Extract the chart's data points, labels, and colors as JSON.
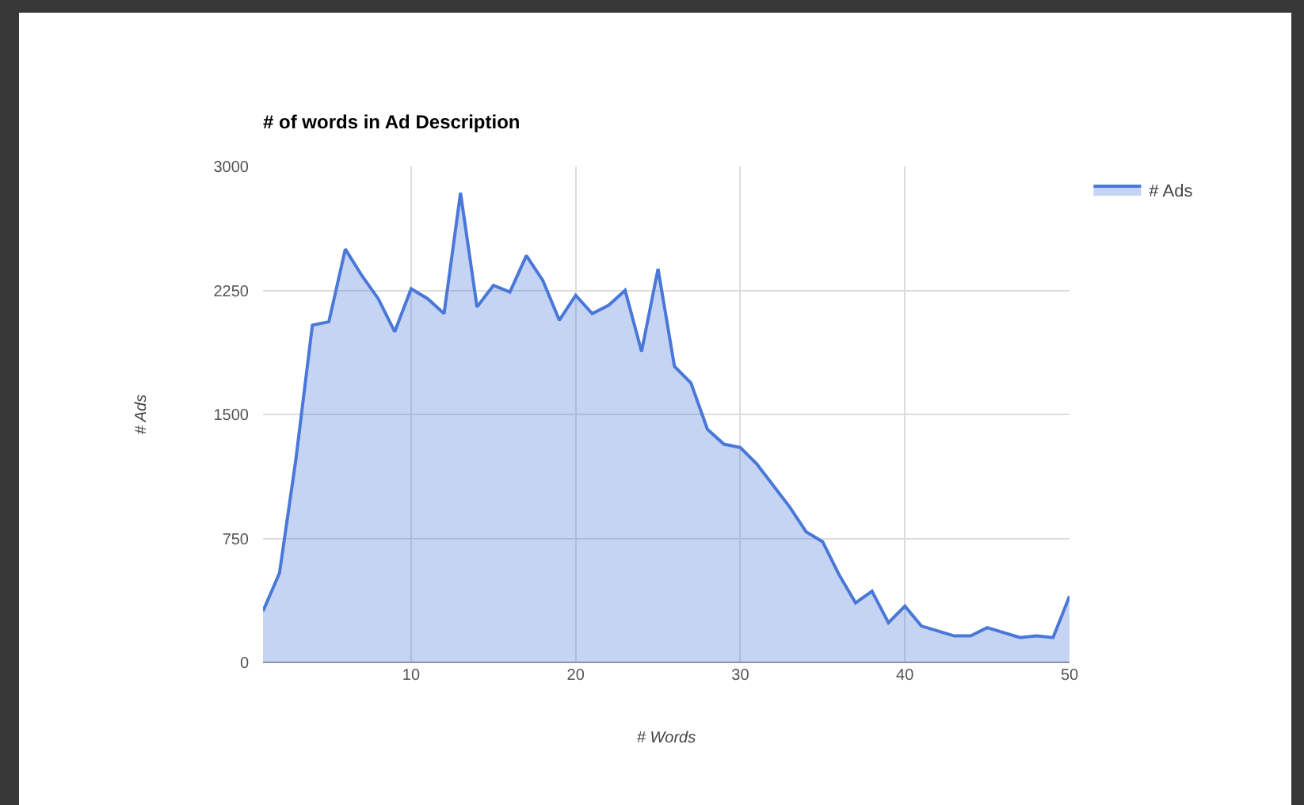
{
  "chart_data": {
    "type": "area",
    "title": "# of words in Ad Description",
    "xlabel": "# Words",
    "ylabel": "# Ads",
    "x": [
      1,
      2,
      3,
      4,
      5,
      6,
      7,
      8,
      9,
      10,
      11,
      12,
      13,
      14,
      15,
      16,
      17,
      18,
      19,
      20,
      21,
      22,
      23,
      24,
      25,
      26,
      27,
      28,
      29,
      30,
      31,
      32,
      33,
      34,
      35,
      36,
      37,
      38,
      39,
      40,
      41,
      42,
      43,
      44,
      45,
      46,
      47,
      48,
      49,
      50
    ],
    "series": [
      {
        "name": "# Ads",
        "color": "#4a78d8",
        "values": [
          310,
          540,
          1230,
          2040,
          2060,
          2500,
          2340,
          2200,
          2000,
          2260,
          2200,
          2110,
          2840,
          2150,
          2280,
          2240,
          2460,
          2310,
          2070,
          2220,
          2110,
          2160,
          2250,
          1880,
          2380,
          1790,
          1690,
          1410,
          1320,
          1300,
          1200,
          1070,
          940,
          790,
          730,
          530,
          360,
          430,
          240,
          340,
          220,
          190,
          160,
          160,
          210,
          180,
          150,
          160,
          150,
          400
        ]
      }
    ],
    "xlim": [
      1,
      50
    ],
    "xticks": [
      10,
      20,
      30,
      40,
      50
    ],
    "ylim": [
      0,
      3000
    ],
    "yticks": [
      0,
      750,
      1500,
      2250,
      3000
    ],
    "grid": true,
    "legend": "top right",
    "marker": "none",
    "line_style": "solid"
  }
}
